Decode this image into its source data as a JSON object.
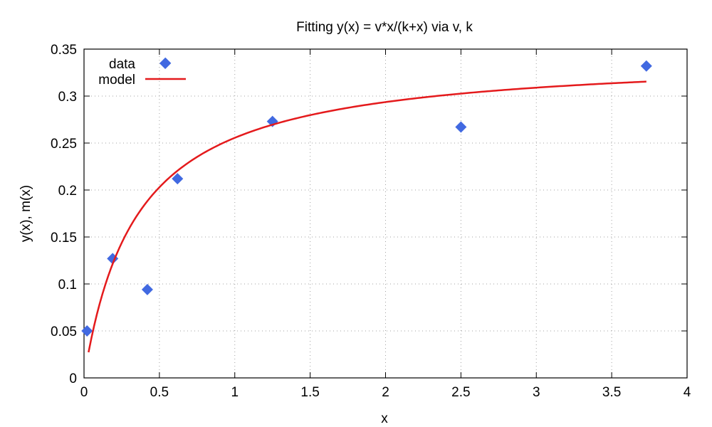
{
  "chart_data": {
    "type": "scatter",
    "title": "Fitting y(x) = v*x/(k+x) via v, k",
    "xlabel": "x",
    "ylabel": "y(x), m(x)",
    "xlim": [
      0,
      4
    ],
    "ylim": [
      0,
      0.35
    ],
    "x_ticks": [
      0,
      0.5,
      1,
      1.5,
      2,
      2.5,
      3,
      3.5,
      4
    ],
    "x_tick_labels": [
      "0",
      "0.5",
      "1",
      "1.5",
      "2",
      "2.5",
      "3",
      "3.5",
      "4"
    ],
    "y_ticks": [
      0,
      0.05,
      0.1,
      0.15,
      0.2,
      0.25,
      0.3,
      0.35
    ],
    "y_tick_labels": [
      "0",
      "0.05",
      "0.1",
      "0.15",
      "0.2",
      "0.25",
      "0.3",
      "0.35"
    ],
    "grid": true,
    "legend_position": "top-left",
    "series": [
      {
        "name": "data",
        "kind": "points",
        "marker": "diamond",
        "color": "#4169e1",
        "x": [
          0.02,
          0.19,
          0.42,
          0.54,
          0.62,
          1.25,
          2.5,
          3.73
        ],
        "y": [
          0.05,
          0.127,
          0.094,
          0.335,
          0.212,
          0.273,
          0.267,
          0.332
        ]
      },
      {
        "name": "model",
        "kind": "line",
        "color": "#e41a1c",
        "function": "v*x/(k+x)",
        "params": {
          "v": 0.345,
          "k": 0.35
        },
        "x_range": [
          0.03,
          3.73
        ]
      }
    ]
  }
}
